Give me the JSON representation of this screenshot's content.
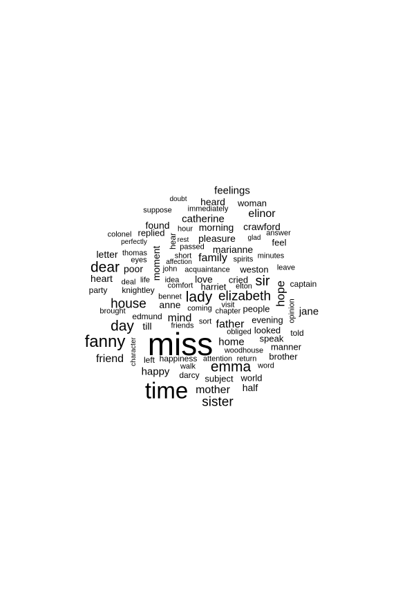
{
  "text_color": "#000000",
  "background": "#ffffff",
  "words": [
    "miss",
    "time",
    "fanny",
    "emma",
    "sister",
    "lady",
    "elizabeth",
    "house",
    "day",
    "dear",
    "sir",
    "hope",
    "mother",
    "feelings",
    "elinor",
    "catherine",
    "family",
    "father",
    "mind",
    "home",
    "friend",
    "happy",
    "half",
    "jane",
    "anne",
    "crawford",
    "morning",
    "pleasure",
    "marianne",
    "heard",
    "woman",
    "found",
    "love",
    "cried",
    "harriet",
    "moment",
    "letter",
    "heart",
    "poor",
    "brother",
    "manner",
    "speak",
    "world",
    "subject",
    "evening",
    "looked",
    "people",
    "weston",
    "captain",
    "feel",
    "replied",
    "party",
    "knightley",
    "till",
    "left",
    "happiness",
    "attention",
    "return",
    "darcy",
    "walk",
    "told",
    "woodhouse",
    "obliged",
    "chapter",
    "visit",
    "coming",
    "sort",
    "friends",
    "bennet",
    "comfort",
    "elton",
    "edmund",
    "brought",
    "eyes",
    "deal",
    "life",
    "idea",
    "acquaintance",
    "john",
    "spirits",
    "affection",
    "short",
    "passed",
    "rest",
    "hour",
    "glad",
    "answer",
    "minutes",
    "leave",
    "thomas",
    "perfectly",
    "colonel",
    "suppose",
    "immediately",
    "doubt",
    "opinion",
    "character",
    "hear",
    "word"
  ]
}
